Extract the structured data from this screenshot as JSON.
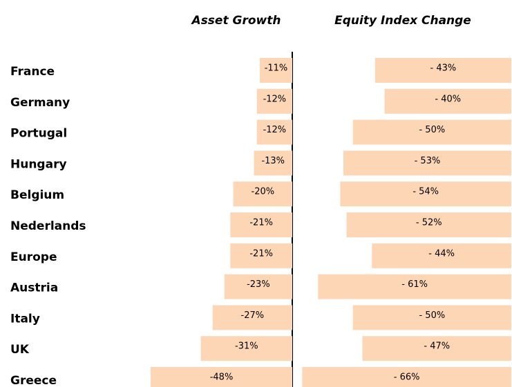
{
  "chart_data": {
    "type": "bar",
    "orientation": "horizontal",
    "categories": [
      "France",
      "Germany",
      "Portugal",
      "Hungary",
      "Belgium",
      "Nederlands",
      "Europe",
      "Austria",
      "Italy",
      "UK",
      "Greece"
    ],
    "series": [
      {
        "name": "Asset Growth",
        "color": "#fdd6b6",
        "values": [
          -11,
          -12,
          -12,
          -13,
          -20,
          -21,
          -21,
          -23,
          -27,
          -31,
          -48
        ],
        "value_labels": [
          "-11%",
          "-12%",
          "-12%",
          "-13%",
          "-20%",
          "-21%",
          "-21%",
          "-23%",
          "-27%",
          "-31%",
          "-48%"
        ],
        "xlim": [
          -50,
          0
        ]
      },
      {
        "name": "Equity Index Change",
        "color": "#fdd6b6",
        "values": [
          -43,
          -40,
          -50,
          -53,
          -54,
          -52,
          -44,
          -61,
          -50,
          -47,
          -66
        ],
        "value_labels": [
          "- 43%",
          "- 40%",
          "- 50%",
          "- 53%",
          "- 54%",
          "- 52%",
          "- 44%",
          "- 61%",
          "- 50%",
          "- 47%",
          "- 66%"
        ],
        "xlim": [
          -70,
          0
        ]
      }
    ]
  }
}
